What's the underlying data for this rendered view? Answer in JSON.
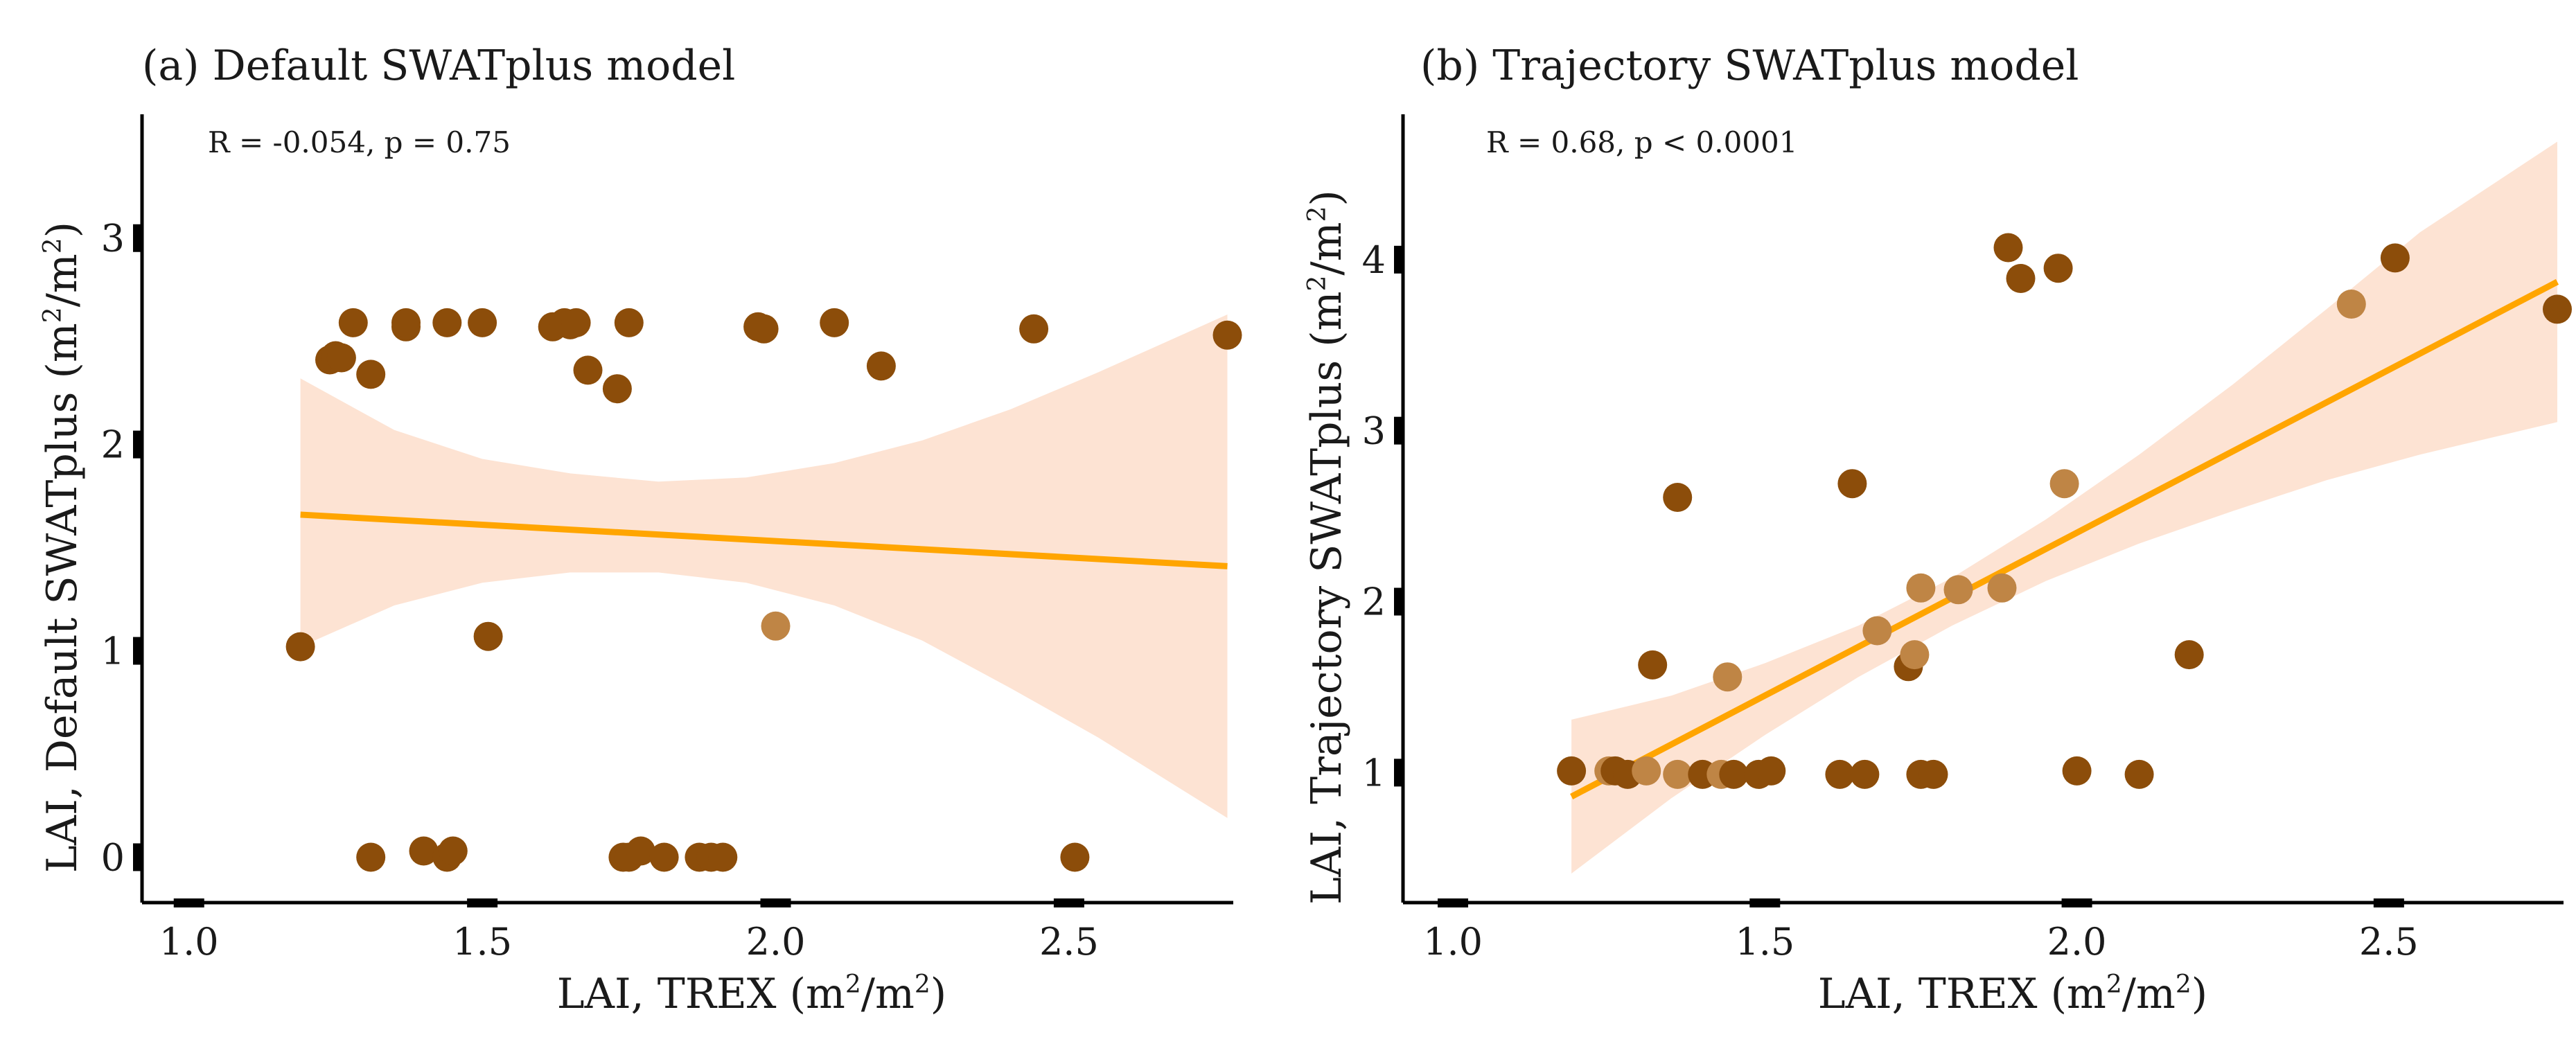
{
  "chart_data": [
    {
      "type": "scatter",
      "title": "(a) Default SWATplus model",
      "stat": "R = -0.054, p = 0.75",
      "xlabel": {
        "prefix": "LAI, TREX (m",
        "sup1": "2",
        "mid": "/m",
        "sup2": "2",
        "suffix": ")"
      },
      "ylabel": {
        "prefix": "LAI, Default SWATplus (m",
        "sup1": "2",
        "mid": "/m",
        "sup2": "2",
        "suffix": ")"
      },
      "xlim": [
        0.92,
        2.78
      ],
      "ylim": [
        -0.22,
        3.6
      ],
      "xticks": [
        {
          "value": 1.0,
          "label": "1.0"
        },
        {
          "value": 1.5,
          "label": "1.5"
        },
        {
          "value": 2.0,
          "label": "2.0"
        },
        {
          "value": 2.5,
          "label": "2.5"
        }
      ],
      "yticks": [
        {
          "value": 0,
          "label": "0"
        },
        {
          "value": 1,
          "label": "1"
        },
        {
          "value": 2,
          "label": "2"
        },
        {
          "value": 3,
          "label": "3"
        }
      ],
      "regression": {
        "x": [
          1.19,
          2.77
        ],
        "y": [
          1.66,
          1.41
        ],
        "color": "#ffa500"
      },
      "confidence_band": {
        "color": "#fde3d3",
        "x": [
          1.19,
          1.35,
          1.5,
          1.65,
          1.8,
          1.95,
          2.1,
          2.25,
          2.4,
          2.55,
          2.77
        ],
        "lower": [
          1.02,
          1.22,
          1.33,
          1.38,
          1.38,
          1.33,
          1.22,
          1.05,
          0.82,
          0.58,
          0.19
        ],
        "upper": [
          2.32,
          2.07,
          1.93,
          1.86,
          1.82,
          1.84,
          1.91,
          2.02,
          2.17,
          2.35,
          2.63
        ]
      },
      "points": [
        {
          "x": 1.19,
          "y": 1.02,
          "shade": "dark"
        },
        {
          "x": 1.24,
          "y": 2.41,
          "shade": "dark"
        },
        {
          "x": 1.25,
          "y": 2.43,
          "shade": "dark"
        },
        {
          "x": 1.26,
          "y": 2.42,
          "shade": "dark"
        },
        {
          "x": 1.28,
          "y": 2.59,
          "shade": "dark"
        },
        {
          "x": 1.31,
          "y": 2.34,
          "shade": "dark"
        },
        {
          "x": 1.37,
          "y": 2.57,
          "shade": "dark"
        },
        {
          "x": 1.37,
          "y": 2.59,
          "shade": "dark"
        },
        {
          "x": 1.44,
          "y": 2.59,
          "shade": "dark"
        },
        {
          "x": 1.5,
          "y": 2.59,
          "shade": "dark"
        },
        {
          "x": 1.51,
          "y": 1.07,
          "shade": "dark"
        },
        {
          "x": 1.62,
          "y": 2.57,
          "shade": "dark"
        },
        {
          "x": 1.64,
          "y": 2.59,
          "shade": "dark"
        },
        {
          "x": 1.65,
          "y": 2.58,
          "shade": "dark"
        },
        {
          "x": 1.66,
          "y": 2.59,
          "shade": "dark"
        },
        {
          "x": 1.68,
          "y": 2.36,
          "shade": "dark"
        },
        {
          "x": 1.73,
          "y": 2.27,
          "shade": "dark"
        },
        {
          "x": 1.75,
          "y": 2.59,
          "shade": "dark"
        },
        {
          "x": 1.97,
          "y": 2.57,
          "shade": "dark"
        },
        {
          "x": 1.98,
          "y": 2.56,
          "shade": "dark"
        },
        {
          "x": 2.0,
          "y": 1.12,
          "shade": "light"
        },
        {
          "x": 2.1,
          "y": 2.59,
          "shade": "dark"
        },
        {
          "x": 2.18,
          "y": 2.38,
          "shade": "dark"
        },
        {
          "x": 2.44,
          "y": 2.56,
          "shade": "dark"
        },
        {
          "x": 2.77,
          "y": 2.53,
          "shade": "dark"
        },
        {
          "x": 1.31,
          "y": 0.0,
          "shade": "dark"
        },
        {
          "x": 1.4,
          "y": 0.03,
          "shade": "dark"
        },
        {
          "x": 1.44,
          "y": 0.0,
          "shade": "dark"
        },
        {
          "x": 1.45,
          "y": 0.03,
          "shade": "dark"
        },
        {
          "x": 1.74,
          "y": 0.0,
          "shade": "dark"
        },
        {
          "x": 1.75,
          "y": 0.0,
          "shade": "dark"
        },
        {
          "x": 1.77,
          "y": 0.03,
          "shade": "dark"
        },
        {
          "x": 1.81,
          "y": 0.0,
          "shade": "dark"
        },
        {
          "x": 1.87,
          "y": 0.0,
          "shade": "dark"
        },
        {
          "x": 1.89,
          "y": 0.0,
          "shade": "dark"
        },
        {
          "x": 1.91,
          "y": 0.0,
          "shade": "dark"
        },
        {
          "x": 2.51,
          "y": 0.0,
          "shade": "dark"
        }
      ]
    },
    {
      "type": "scatter",
      "title": "(b) Trajectory SWATplus model",
      "stat": "R = 0.68, p < 0.0001",
      "xlabel": {
        "prefix": "LAI, TREX (m",
        "sup1": "2",
        "mid": "/m",
        "sup2": "2",
        "suffix": ")"
      },
      "ylabel": {
        "prefix": "LAI, Trajectory SWATplus (m",
        "sup1": "2",
        "mid": "/m",
        "sup2": "2",
        "suffix": ")"
      },
      "xlim": [
        0.92,
        2.78
      ],
      "ylim": [
        0.24,
        4.85
      ],
      "xticks": [
        {
          "value": 1.0,
          "label": "1.0"
        },
        {
          "value": 1.5,
          "label": "1.5"
        },
        {
          "value": 2.0,
          "label": "2.0"
        },
        {
          "value": 2.5,
          "label": "2.5"
        }
      ],
      "yticks": [
        {
          "value": 1,
          "label": "1"
        },
        {
          "value": 2,
          "label": "2"
        },
        {
          "value": 3,
          "label": "3"
        },
        {
          "value": 4,
          "label": "4"
        }
      ],
      "regression": {
        "x": [
          1.19,
          2.77
        ],
        "y": [
          0.86,
          3.87
        ],
        "color": "#ffa500"
      },
      "confidence_band": {
        "color": "#fde3d3",
        "x": [
          1.19,
          1.35,
          1.5,
          1.65,
          1.8,
          1.95,
          2.1,
          2.25,
          2.4,
          2.55,
          2.77
        ],
        "lower": [
          0.41,
          0.85,
          1.22,
          1.56,
          1.86,
          2.12,
          2.34,
          2.53,
          2.71,
          2.86,
          3.05
        ],
        "upper": [
          1.31,
          1.45,
          1.64,
          1.86,
          2.14,
          2.48,
          2.86,
          3.27,
          3.71,
          4.16,
          4.69
        ]
      },
      "points": [
        {
          "x": 1.19,
          "y": 1.01,
          "shade": "dark"
        },
        {
          "x": 1.25,
          "y": 1.01,
          "shade": "light"
        },
        {
          "x": 1.26,
          "y": 1.01,
          "shade": "dark"
        },
        {
          "x": 1.28,
          "y": 0.99,
          "shade": "dark"
        },
        {
          "x": 1.31,
          "y": 1.01,
          "shade": "light"
        },
        {
          "x": 1.32,
          "y": 1.63,
          "shade": "dark"
        },
        {
          "x": 1.36,
          "y": 2.61,
          "shade": "dark"
        },
        {
          "x": 1.36,
          "y": 0.99,
          "shade": "light"
        },
        {
          "x": 1.4,
          "y": 0.99,
          "shade": "dark"
        },
        {
          "x": 1.43,
          "y": 0.99,
          "shade": "light"
        },
        {
          "x": 1.44,
          "y": 1.56,
          "shade": "light"
        },
        {
          "x": 1.45,
          "y": 0.99,
          "shade": "dark"
        },
        {
          "x": 1.49,
          "y": 0.99,
          "shade": "dark"
        },
        {
          "x": 1.51,
          "y": 1.01,
          "shade": "dark"
        },
        {
          "x": 1.62,
          "y": 0.99,
          "shade": "dark"
        },
        {
          "x": 1.64,
          "y": 2.69,
          "shade": "dark"
        },
        {
          "x": 1.66,
          "y": 0.99,
          "shade": "dark"
        },
        {
          "x": 1.68,
          "y": 1.83,
          "shade": "light"
        },
        {
          "x": 1.73,
          "y": 1.62,
          "shade": "dark"
        },
        {
          "x": 1.74,
          "y": 1.69,
          "shade": "light"
        },
        {
          "x": 1.75,
          "y": 2.08,
          "shade": "light"
        },
        {
          "x": 1.75,
          "y": 0.99,
          "shade": "dark"
        },
        {
          "x": 1.77,
          "y": 0.99,
          "shade": "dark"
        },
        {
          "x": 1.81,
          "y": 2.07,
          "shade": "light"
        },
        {
          "x": 1.88,
          "y": 2.08,
          "shade": "light"
        },
        {
          "x": 1.89,
          "y": 4.07,
          "shade": "dark"
        },
        {
          "x": 1.91,
          "y": 3.89,
          "shade": "dark"
        },
        {
          "x": 1.97,
          "y": 3.95,
          "shade": "dark"
        },
        {
          "x": 1.98,
          "y": 2.69,
          "shade": "light"
        },
        {
          "x": 2.0,
          "y": 1.01,
          "shade": "dark"
        },
        {
          "x": 2.1,
          "y": 0.99,
          "shade": "dark"
        },
        {
          "x": 2.18,
          "y": 1.69,
          "shade": "dark"
        },
        {
          "x": 2.44,
          "y": 3.74,
          "shade": "light"
        },
        {
          "x": 2.51,
          "y": 4.01,
          "shade": "dark"
        },
        {
          "x": 2.77,
          "y": 3.71,
          "shade": "dark"
        }
      ]
    }
  ],
  "colors": {
    "point_dark": "#8c4d0a",
    "point_light": "#bf8545",
    "axis": "#000000"
  }
}
